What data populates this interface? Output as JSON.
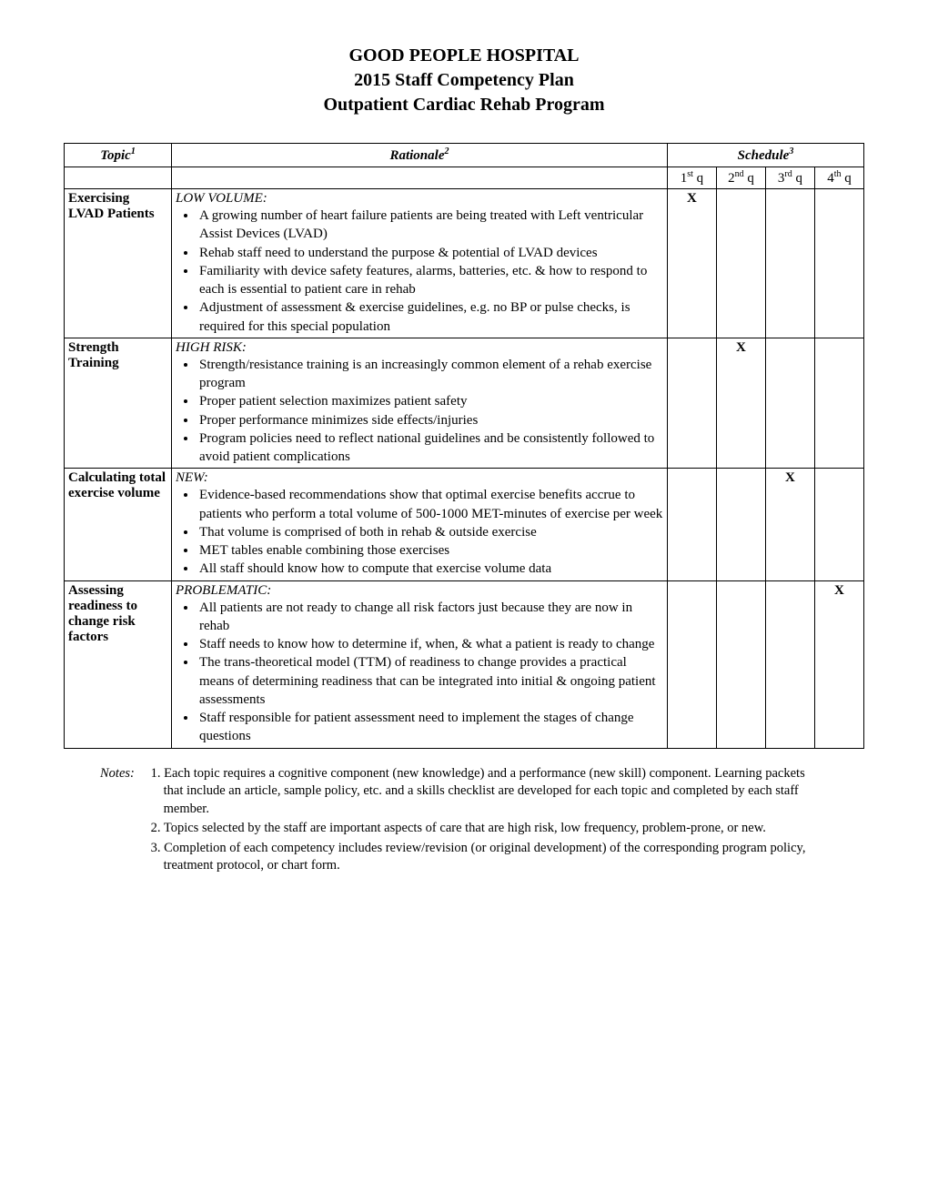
{
  "header": {
    "line1": "GOOD PEOPLE HOSPITAL",
    "line2": "2015 Staff Competency Plan",
    "line3": "Outpatient Cardiac Rehab Program"
  },
  "columns": {
    "topic": "Topic",
    "topic_sup": "1",
    "rationale": "Rationale",
    "rationale_sup": "2",
    "schedule": "Schedule",
    "schedule_sup": "3",
    "q1_num": "1",
    "q1_sup": "st",
    "q1_suffix": " q",
    "q2_num": "2",
    "q2_sup": "nd",
    "q2_suffix": " q",
    "q3_num": "3",
    "q3_sup": "rd",
    "q3_suffix": " q",
    "q4_num": "4",
    "q4_sup": "th",
    "q4_suffix": " q"
  },
  "rows": [
    {
      "topic": "Exercising LVAD Patients",
      "label": "LOW VOLUME:",
      "bullets": [
        "A growing number of heart failure patients are being treated with Left ventricular Assist Devices (LVAD)",
        "Rehab staff need to understand the purpose & potential of LVAD devices",
        "Familiarity with device safety features, alarms, batteries, etc. & how to respond to each is essential to patient care in rehab",
        "Adjustment of assessment & exercise guidelines, e.g. no BP or pulse checks, is required for this special population"
      ],
      "q": [
        "X",
        "",
        "",
        ""
      ]
    },
    {
      "topic": "Strength Training",
      "label": "HIGH RISK:",
      "bullets": [
        "Strength/resistance training is an increasingly common element of a rehab exercise program",
        "Proper patient selection maximizes patient safety",
        "Proper performance minimizes side effects/injuries",
        "Program policies need to reflect national guidelines and  be consistently followed to avoid patient complications"
      ],
      "q": [
        "",
        "X",
        "",
        ""
      ]
    },
    {
      "topic": "Calculating total exercise volume",
      "label": "NEW:",
      "bullets": [
        "Evidence-based recommendations show that optimal exercise benefits accrue to patients who perform a total volume of 500-1000 MET-minutes of exercise per week",
        "That volume is comprised of both in rehab & outside exercise",
        "MET tables enable combining those exercises",
        "All staff should know how to compute that exercise volume data"
      ],
      "q": [
        "",
        "",
        "X",
        ""
      ]
    },
    {
      "topic": "Assessing readiness to change risk factors",
      "label": "PROBLEMATIC:",
      "bullets": [
        "All patients are not ready to change all risk factors just because they are now in rehab",
        "Staff needs to know how to determine if, when, & what a patient is ready to change",
        "The trans-theoretical model (TTM) of readiness to change provides a practical means of determining readiness that can be integrated into initial & ongoing patient assessments",
        "Staff responsible for patient assessment need to implement the stages of change questions"
      ],
      "q": [
        "",
        "",
        "",
        "X"
      ]
    }
  ],
  "notes": {
    "label": "Notes:",
    "items": [
      "1. Each topic requires a cognitive component (new knowledge) and a performance (new skill) component. Learning packets that include an article, sample policy, etc. and a skills checklist are developed for each topic and completed by each staff member.",
      "2. Topics selected by the staff are important aspects of care that are high risk, low frequency, problem-prone, or new.",
      "3. Completion of each competency includes review/revision (or original development) of the corresponding program policy, treatment protocol, or chart form."
    ]
  }
}
